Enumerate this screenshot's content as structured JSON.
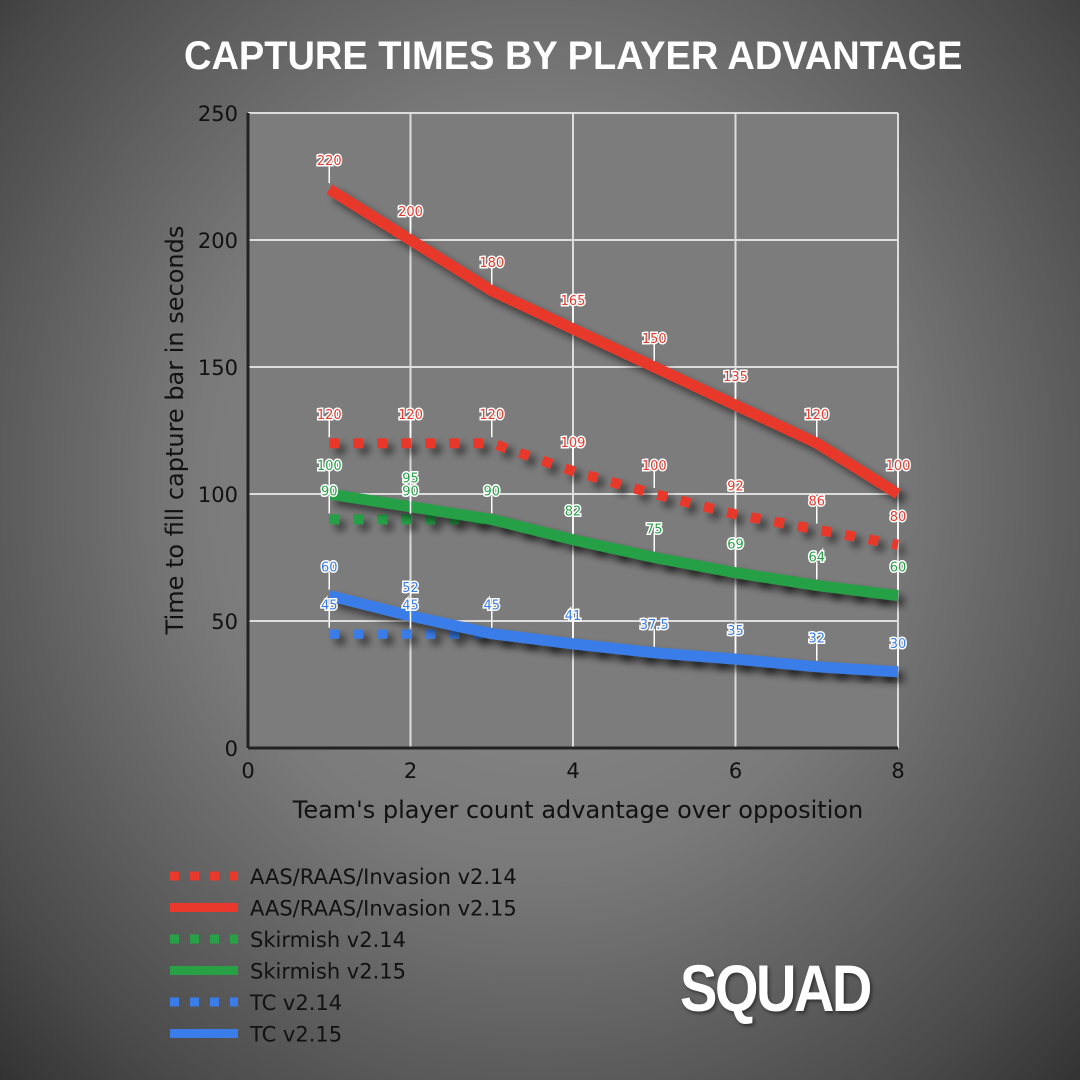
{
  "chart_data": {
    "type": "line",
    "title": "CAPTURE TIMES BY PLAYER ADVANTAGE",
    "xlabel": "Team's player count advantage over opposition",
    "ylabel": "Time to fill capture bar in seconds",
    "xlim": [
      0,
      8
    ],
    "ylim": [
      0,
      250
    ],
    "xticks": [
      0,
      2,
      4,
      6,
      8
    ],
    "yticks": [
      0,
      50,
      100,
      150,
      200,
      250
    ],
    "grid": true,
    "legend_position": "bottom-left",
    "x": [
      1,
      2,
      3,
      4,
      5,
      6,
      7,
      8
    ],
    "series": [
      {
        "name": "AAS/RAAS/Invasion v2.14",
        "color": "#e8392c",
        "style": "dotted",
        "values": [
          120,
          120,
          120,
          109,
          100,
          92,
          86,
          80
        ]
      },
      {
        "name": "AAS/RAAS/Invasion v2.15",
        "color": "#e8392c",
        "style": "solid",
        "values": [
          220,
          200,
          180,
          165,
          150,
          135,
          120,
          100
        ]
      },
      {
        "name": "Skirmish v2.14",
        "color": "#27a046",
        "style": "dotted",
        "values": [
          90,
          90,
          90,
          82,
          75,
          69,
          64,
          60
        ]
      },
      {
        "name": "Skirmish v2.15",
        "color": "#27a046",
        "style": "solid",
        "values": [
          100,
          95,
          90,
          82,
          75,
          69,
          64,
          60
        ]
      },
      {
        "name": "TC v2.14",
        "color": "#3a7de8",
        "style": "dotted",
        "values": [
          45,
          45,
          45,
          41,
          37.5,
          35,
          32,
          30
        ]
      },
      {
        "name": "TC v2.15",
        "color": "#3a7de8",
        "style": "solid",
        "values": [
          60,
          52,
          45,
          41,
          37.5,
          35,
          32,
          30
        ]
      }
    ]
  },
  "logo": "SQUAD"
}
